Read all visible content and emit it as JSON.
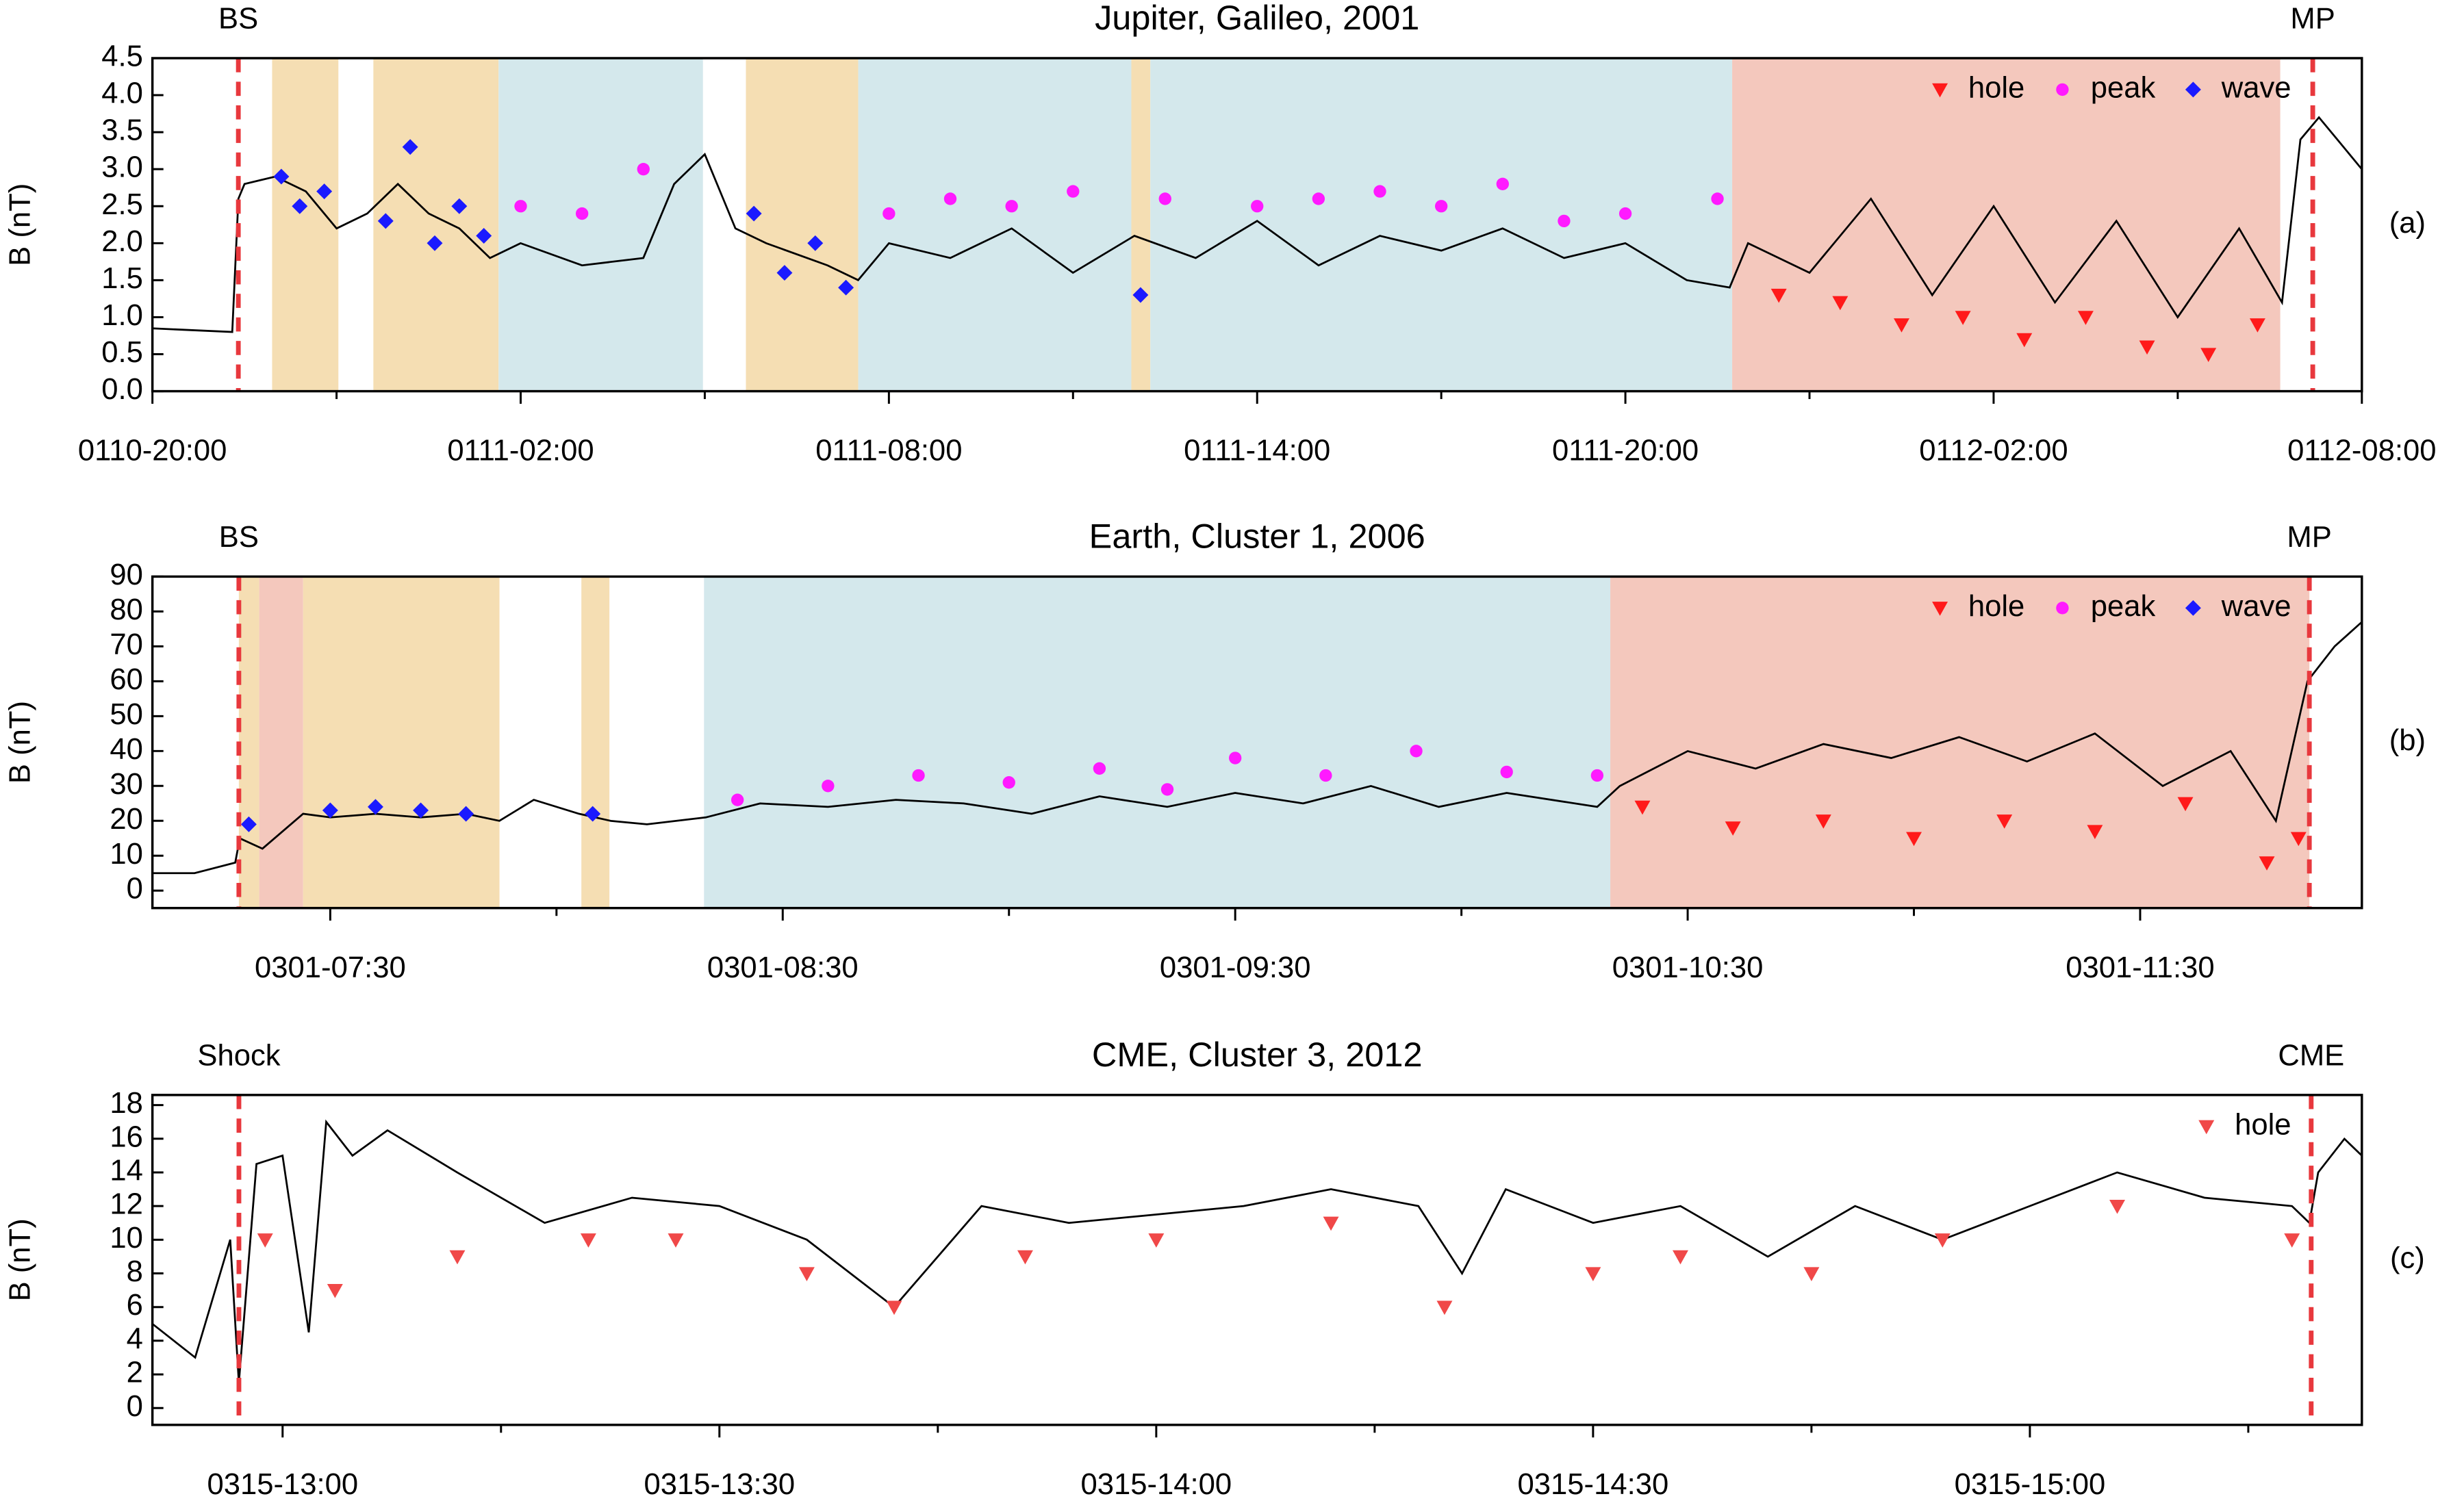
{
  "chart_data": [
    {
      "type": "line",
      "title": "Jupiter, Galileo, 2001",
      "ylabel": "B (nT)",
      "panel_label": "(a)",
      "xlim": [
        0,
        36
      ],
      "xticks": [
        {
          "value": 0,
          "label": "0110-20:00"
        },
        {
          "value": 6,
          "label": "0111-02:00"
        },
        {
          "value": 12,
          "label": "0111-08:00"
        },
        {
          "value": 18,
          "label": "0111-14:00"
        },
        {
          "value": 24,
          "label": "0111-20:00"
        },
        {
          "value": 30,
          "label": "0112-02:00"
        },
        {
          "value": 36,
          "label": "0112-08:00"
        }
      ],
      "xminorticks": [
        3,
        9,
        15,
        21,
        27,
        33
      ],
      "ylim": [
        0,
        4.5
      ],
      "yticks": [
        {
          "value": 0,
          "label": "0.0"
        },
        0.5,
        {
          "value": 1,
          "label": "1.0"
        },
        1.5,
        {
          "value": 2,
          "label": "2.0"
        },
        2.5,
        {
          "value": 3,
          "label": "3.0"
        },
        3.5,
        {
          "value": 4,
          "label": "4.0"
        },
        4.5
      ],
      "legend": "upper right",
      "boundaries": [
        {
          "label": "BS",
          "x": 1.4
        },
        {
          "label": "MP",
          "x": 35.2
        }
      ],
      "regions": [
        {
          "color": "#f5deb3",
          "x": [
            1.95,
            3.03
          ]
        },
        {
          "color": "#f5deb3",
          "x": [
            3.6,
            5.64
          ]
        },
        {
          "color": "#d4e8ec",
          "x": [
            5.64,
            8.97
          ]
        },
        {
          "color": "#f5deb3",
          "x": [
            9.67,
            11.5
          ]
        },
        {
          "color": "#d4e8ec",
          "x": [
            11.5,
            15.95
          ]
        },
        {
          "color": "#f5deb3",
          "x": [
            15.95,
            16.26
          ]
        },
        {
          "color": "#d4e8ec",
          "x": [
            16.26,
            25.74
          ]
        },
        {
          "color": "#f4c8bd",
          "x": [
            25.74,
            34.67
          ]
        }
      ],
      "series": [
        {
          "marker": "line",
          "color": "#000000",
          "x": [
            0,
            1.3,
            1.4,
            1.5,
            2,
            2.5,
            3,
            3.5,
            4,
            4.5,
            5,
            5.5,
            6,
            7,
            8,
            8.5,
            9,
            9.5,
            10,
            11,
            11.5,
            12,
            13,
            14,
            15,
            16,
            17,
            18,
            19,
            20,
            21,
            22,
            23,
            24,
            25,
            25.7,
            26,
            27,
            28,
            29,
            30,
            31,
            32,
            33,
            34,
            34.7,
            35,
            35.3,
            35.6,
            36
          ],
          "values": [
            0.85,
            0.8,
            2.6,
            2.8,
            2.9,
            2.7,
            2.2,
            2.4,
            2.8,
            2.4,
            2.2,
            1.8,
            2.0,
            1.7,
            1.8,
            2.8,
            3.2,
            2.2,
            2.0,
            1.7,
            1.5,
            2.0,
            1.8,
            2.2,
            1.6,
            2.1,
            1.8,
            2.3,
            1.7,
            2.1,
            1.9,
            2.2,
            1.8,
            2.0,
            1.5,
            1.4,
            2.0,
            1.6,
            2.6,
            1.3,
            2.5,
            1.2,
            2.3,
            1.0,
            2.2,
            1.2,
            3.4,
            3.7,
            3.4,
            3.0
          ]
        },
        {
          "name": "hole",
          "marker": "triangle",
          "color": "#ff1a1a",
          "x": [
            26.5,
            27.5,
            28.5,
            29.5,
            30.5,
            31.5,
            32.5,
            33.5,
            34.3
          ],
          "values": [
            1.3,
            1.2,
            0.9,
            1.0,
            0.7,
            1.0,
            0.6,
            0.5,
            0.9
          ]
        },
        {
          "name": "peak",
          "marker": "circle",
          "color": "#ff1aff",
          "x": [
            6,
            7,
            8,
            12,
            13,
            14,
            15,
            16.5,
            18,
            19,
            20,
            21,
            22,
            23,
            24,
            25.5
          ],
          "values": [
            2.5,
            2.4,
            3.0,
            2.4,
            2.6,
            2.5,
            2.7,
            2.6,
            2.5,
            2.6,
            2.7,
            2.5,
            2.8,
            2.3,
            2.4,
            2.6
          ]
        },
        {
          "name": "wave",
          "marker": "diamond",
          "color": "#1a1aff",
          "x": [
            2.1,
            2.4,
            2.8,
            3.8,
            4.2,
            4.6,
            5.0,
            5.4,
            9.8,
            10.3,
            10.8,
            11.3,
            16.1
          ],
          "values": [
            2.9,
            2.5,
            2.7,
            2.3,
            3.3,
            2.0,
            2.5,
            2.1,
            2.4,
            1.6,
            2.0,
            1.4,
            1.3
          ]
        }
      ]
    },
    {
      "type": "line",
      "title": "Earth, Cluster 1, 2006",
      "ylabel": "B (nT)",
      "panel_label": "(b)",
      "xlim": [
        7.107,
        11.99
      ],
      "xticks": [
        {
          "value": 7.5,
          "label": "0301-07:30"
        },
        {
          "value": 8.5,
          "label": "0301-08:30"
        },
        {
          "value": 9.5,
          "label": "0301-09:30"
        },
        {
          "value": 10.5,
          "label": "0301-10:30"
        },
        {
          "value": 11.5,
          "label": "0301-11:30"
        }
      ],
      "xminorticks": [
        8,
        9,
        10,
        11
      ],
      "ylim": [
        -5,
        90
      ],
      "yticks": [
        0,
        10,
        20,
        30,
        40,
        50,
        60,
        70,
        80,
        90
      ],
      "legend": "upper right",
      "boundaries": [
        {
          "label": "BS",
          "x": 7.298
        },
        {
          "label": "MP",
          "x": 11.874
        }
      ],
      "regions": [
        {
          "color": "#f5deb3",
          "x": [
            7.298,
            7.343
          ]
        },
        {
          "color": "#f4c8bd",
          "x": [
            7.343,
            7.44
          ]
        },
        {
          "color": "#f5deb3",
          "x": [
            7.44,
            7.874
          ]
        },
        {
          "color": "#f5deb3",
          "x": [
            8.055,
            8.117
          ]
        },
        {
          "color": "#d4e8ec",
          "x": [
            8.326,
            10.329
          ]
        },
        {
          "color": "#f4c8bd",
          "x": [
            10.329,
            11.874
          ]
        }
      ],
      "series": [
        {
          "marker": "line",
          "color": "#000000",
          "x": [
            7.107,
            7.2,
            7.29,
            7.3,
            7.35,
            7.44,
            7.5,
            7.6,
            7.7,
            7.8,
            7.874,
            7.95,
            8.05,
            8.12,
            8.2,
            8.33,
            8.45,
            8.6,
            8.75,
            8.9,
            9.05,
            9.2,
            9.35,
            9.5,
            9.65,
            9.8,
            9.95,
            10.1,
            10.3,
            10.35,
            10.5,
            10.65,
            10.8,
            10.95,
            11.1,
            11.25,
            11.4,
            11.55,
            11.7,
            11.8,
            11.87,
            11.93,
            11.99
          ],
          "values": [
            5,
            5,
            8,
            15,
            12,
            22,
            21,
            22,
            21,
            22,
            20,
            26,
            22,
            20,
            19,
            21,
            25,
            24,
            26,
            25,
            22,
            27,
            24,
            28,
            25,
            30,
            24,
            28,
            24,
            30,
            40,
            35,
            42,
            38,
            44,
            37,
            45,
            30,
            40,
            20,
            60,
            70,
            77
          ]
        },
        {
          "name": "hole",
          "marker": "triangle",
          "color": "#ff1a1a",
          "x": [
            10.4,
            10.6,
            10.8,
            11.0,
            11.2,
            11.4,
            11.6,
            11.78,
            11.85
          ],
          "values": [
            24,
            18,
            20,
            15,
            20,
            17,
            25,
            8,
            15
          ]
        },
        {
          "name": "peak",
          "marker": "circle",
          "color": "#ff1aff",
          "x": [
            8.4,
            8.6,
            8.8,
            9.0,
            9.2,
            9.35,
            9.5,
            9.7,
            9.9,
            10.1,
            10.3
          ],
          "values": [
            26,
            30,
            33,
            31,
            35,
            29,
            38,
            33,
            40,
            34,
            33
          ]
        },
        {
          "name": "wave",
          "marker": "diamond",
          "color": "#1a1aff",
          "x": [
            7.32,
            7.5,
            7.6,
            7.7,
            7.8,
            8.08
          ],
          "values": [
            19,
            23,
            24,
            23,
            22,
            22
          ]
        }
      ]
    },
    {
      "type": "line",
      "title": "CME, Cluster 3, 2012",
      "ylabel": "B (nT)",
      "panel_label": "(c)",
      "xlim": [
        12.851,
        15.38
      ],
      "xticks": [
        {
          "value": 13,
          "label": "0315-13:00"
        },
        {
          "value": 13.5,
          "label": "0315-13:30"
        },
        {
          "value": 14,
          "label": "0315-14:00"
        },
        {
          "value": 14.5,
          "label": "0315-14:30"
        },
        {
          "value": 15,
          "label": "0315-15:00"
        }
      ],
      "xminorticks": [
        13.25,
        13.75,
        14.25,
        14.75,
        15.25
      ],
      "ylim": [
        -1,
        18.6
      ],
      "yticks": [
        0,
        2,
        4,
        6,
        8,
        10,
        12,
        14,
        16,
        18
      ],
      "legend": "upper right",
      "boundaries": [
        {
          "label": "Shock",
          "x": 12.95
        },
        {
          "label": "CME",
          "x": 15.322
        }
      ],
      "regions": [],
      "series": [
        {
          "marker": "line",
          "color": "#000000",
          "x": [
            12.851,
            12.9,
            12.94,
            12.95,
            12.97,
            13.0,
            13.03,
            13.05,
            13.08,
            13.12,
            13.2,
            13.3,
            13.4,
            13.5,
            13.6,
            13.7,
            13.8,
            13.9,
            14.0,
            14.1,
            14.2,
            14.3,
            14.35,
            14.4,
            14.5,
            14.6,
            14.7,
            14.8,
            14.9,
            15.0,
            15.1,
            15.2,
            15.3,
            15.32,
            15.33,
            15.36,
            15.38
          ],
          "values": [
            5,
            3,
            10,
            1.5,
            14.5,
            15,
            4.5,
            17,
            15,
            16.5,
            14,
            11,
            12.5,
            12,
            10,
            6,
            12,
            11,
            11.5,
            12,
            13,
            12,
            8,
            13,
            11,
            12,
            9,
            12,
            10,
            12,
            14,
            12.5,
            12,
            11,
            14,
            16,
            15
          ]
        },
        {
          "name": "hole",
          "marker": "triangle",
          "color": "#f04848",
          "x": [
            12.98,
            13.06,
            13.2,
            13.35,
            13.45,
            13.6,
            13.7,
            13.85,
            14.0,
            14.2,
            14.33,
            14.5,
            14.6,
            14.75,
            14.9,
            15.1,
            15.3
          ],
          "values": [
            10,
            7,
            9,
            10,
            10,
            8,
            6,
            9,
            10,
            11,
            6,
            8,
            9,
            8,
            10,
            12,
            10
          ]
        }
      ]
    }
  ]
}
